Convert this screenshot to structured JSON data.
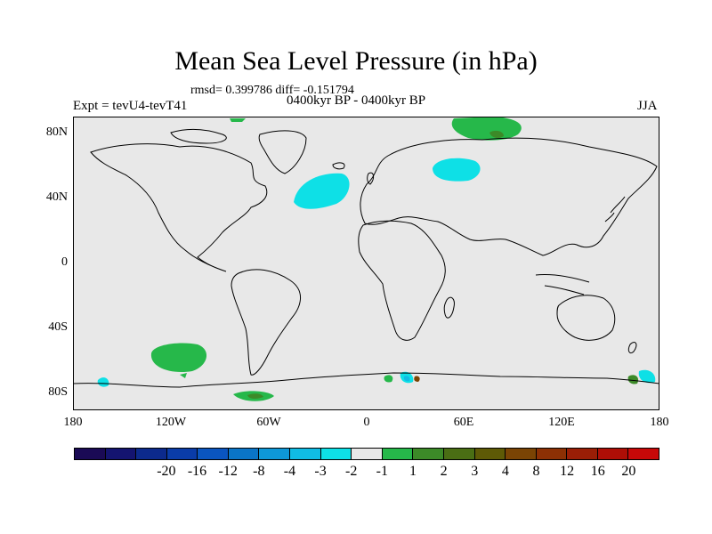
{
  "title": "Mean Sea Level Pressure (in hPa)",
  "stats": "rmsd= 0.399786 diff= -0.151794",
  "subtitle": "0400kyr BP - 0400kyr BP",
  "experiment": "Expt = tevU4-tevT41",
  "season": "JJA",
  "axes": {
    "lat_labels": [
      "80N",
      "40N",
      "0",
      "40S",
      "80S"
    ],
    "lon_labels": [
      "180",
      "120W",
      "60W",
      "0",
      "60E",
      "120E",
      "180"
    ]
  },
  "colorbar": {
    "colors": [
      "#1a0a55",
      "#141470",
      "#0c2a8c",
      "#0a3ca8",
      "#0a55c0",
      "#0a75c8",
      "#0e98d8",
      "#10bce4",
      "#0ee0e6",
      "#e8e8e8",
      "#26b84a",
      "#3c8a28",
      "#4a6e14",
      "#5e5a06",
      "#7a4404",
      "#8c3004",
      "#9a1e06",
      "#ae0e06",
      "#c80808"
    ],
    "labels": [
      "-20",
      "-16",
      "-12",
      "-8",
      "-4",
      "-3",
      "-2",
      "-1",
      "1",
      "2",
      "3",
      "4",
      "8",
      "12",
      "16",
      "20"
    ]
  },
  "map_colors": {
    "background": "#e8e8e8",
    "positive_2": "#26b84a",
    "positive_3": "#3c8a28",
    "positive_8": "#7a4404",
    "negative_1": "#0ee0e6",
    "negative_2": "#10bce4",
    "negative_3": "#0e98d8"
  }
}
